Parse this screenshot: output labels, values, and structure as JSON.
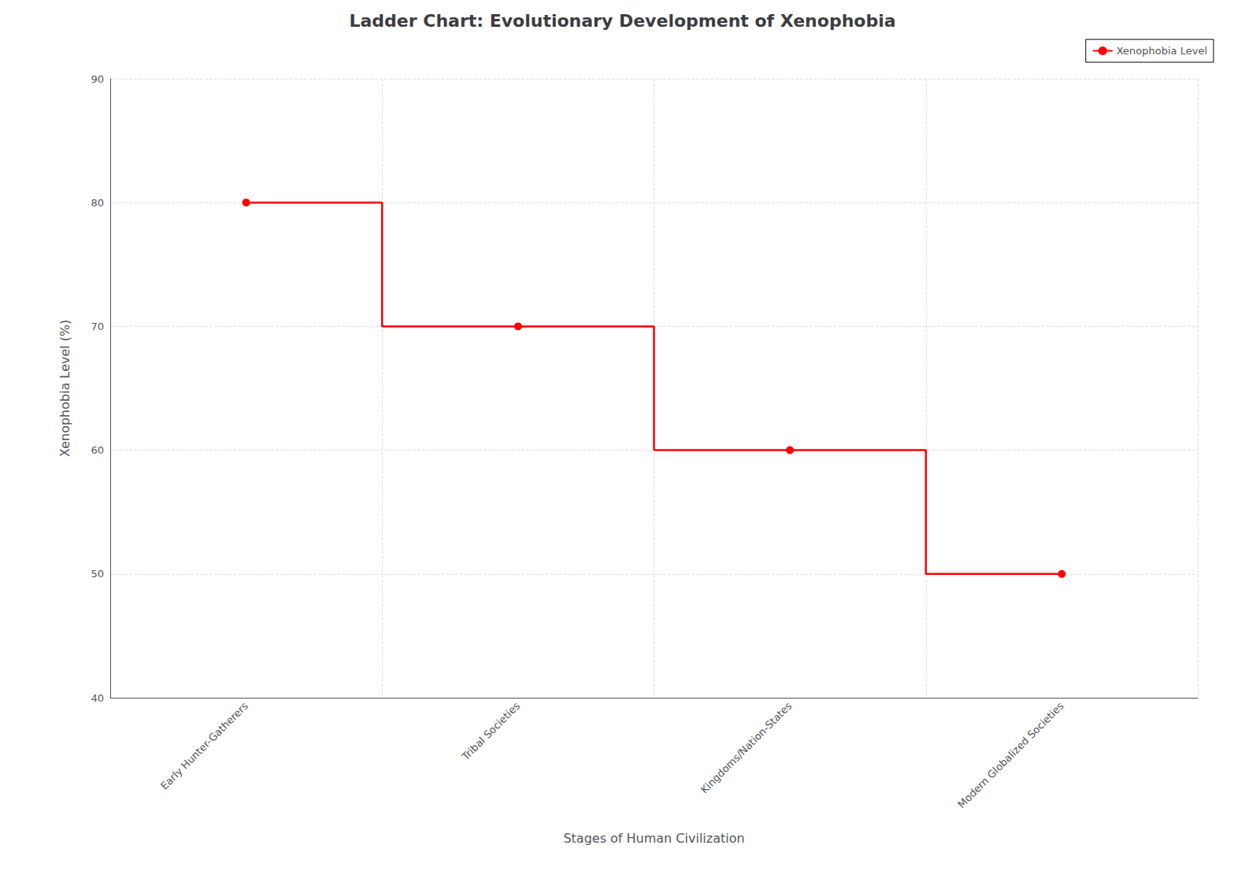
{
  "chart_data": {
    "type": "step",
    "title": "Ladder Chart: Evolutionary Development of Xenophobia",
    "xlabel": "Stages of Human Civilization",
    "ylabel": "Xenophobia Level (%)",
    "categories": [
      "Early Hunter-Gatherers",
      "Tribal Societies",
      "Kingdoms/Nation-States",
      "Modern Globalized Societies"
    ],
    "series": [
      {
        "name": "Xenophobia Level",
        "color": "#ff0000",
        "marker": "circle",
        "values": [
          80,
          70,
          60,
          50
        ]
      }
    ],
    "ylim": [
      40,
      90
    ],
    "yticks": [
      40,
      50,
      60,
      70,
      80,
      90
    ],
    "grid": true,
    "legend": "upper right"
  }
}
